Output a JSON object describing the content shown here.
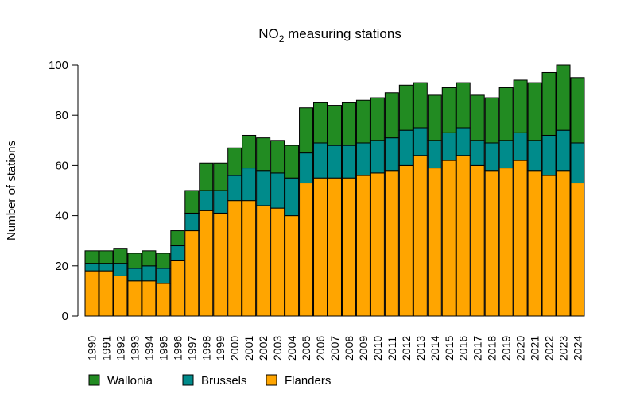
{
  "chart_data": {
    "type": "bar",
    "stacked": true,
    "title": "NO2 measuring stations",
    "title_main": "NO",
    "title_sub": "2",
    "title_rest": " measuring stations",
    "xlabel": "",
    "ylabel": "Number of stations",
    "ylim": [
      0,
      100
    ],
    "yticks": [
      0,
      20,
      40,
      60,
      80,
      100
    ],
    "grid": false,
    "legend_placement": "bottom-left",
    "categories": [
      "1990",
      "1991",
      "1992",
      "1993",
      "1994",
      "1995",
      "1996",
      "1997",
      "1998",
      "1999",
      "2000",
      "2001",
      "2002",
      "2003",
      "2004",
      "2005",
      "2006",
      "2007",
      "2008",
      "2009",
      "2010",
      "2011",
      "2012",
      "2013",
      "2014",
      "2015",
      "2016",
      "2017",
      "2018",
      "2019",
      "2020",
      "2021",
      "2022",
      "2023",
      "2024"
    ],
    "series": [
      {
        "name": "Flanders",
        "color": "#FFA500",
        "values": [
          18,
          18,
          16,
          14,
          14,
          13,
          22,
          34,
          42,
          41,
          46,
          46,
          44,
          43,
          40,
          53,
          55,
          55,
          55,
          56,
          57,
          58,
          60,
          64,
          59,
          62,
          64,
          60,
          58,
          59,
          62,
          58,
          56,
          58,
          53
        ]
      },
      {
        "name": "Brussels",
        "color": "#008B8B",
        "values": [
          3,
          3,
          5,
          5,
          6,
          6,
          6,
          7,
          8,
          9,
          10,
          13,
          14,
          14,
          15,
          12,
          14,
          13,
          13,
          13,
          13,
          13,
          14,
          11,
          11,
          11,
          11,
          10,
          11,
          11,
          11,
          12,
          16,
          16,
          16
        ]
      },
      {
        "name": "Wallonia",
        "color": "#228B22",
        "values": [
          5,
          5,
          6,
          6,
          6,
          6,
          6,
          9,
          11,
          11,
          11,
          13,
          13,
          13,
          13,
          18,
          16,
          16,
          17,
          17,
          17,
          18,
          18,
          18,
          18,
          18,
          18,
          18,
          18,
          21,
          21,
          23,
          25,
          26,
          26
        ]
      }
    ],
    "legend_order": [
      "Wallonia",
      "Brussels",
      "Flanders"
    ]
  }
}
